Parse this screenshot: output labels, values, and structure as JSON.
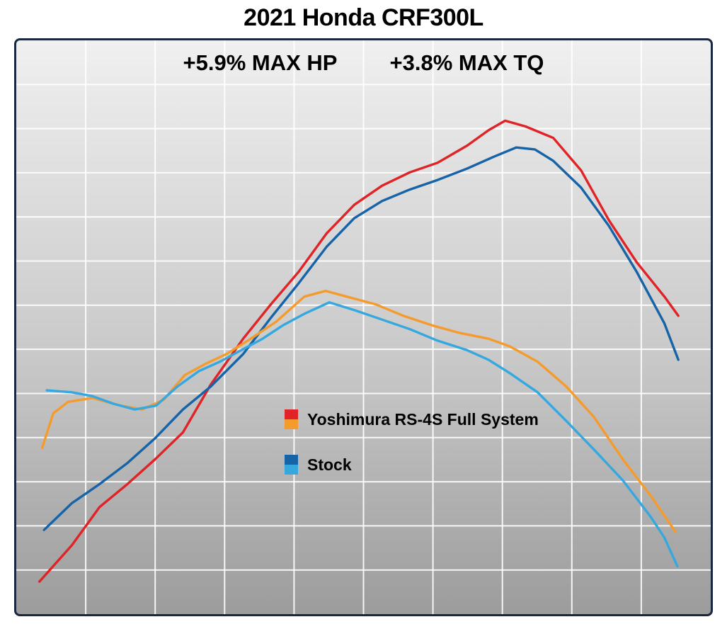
{
  "page": {
    "title": "2021 Honda CRF300L"
  },
  "annotations": {
    "hp_gain": "+5.9% MAX HP",
    "tq_gain": "+3.8% MAX TQ"
  },
  "legend": [
    {
      "label": "Yoshimura RS-4S Full System",
      "colors": [
        "#e02327",
        "#f59b2d"
      ]
    },
    {
      "label": "Stock",
      "colors": [
        "#1663a7",
        "#35a8e0"
      ]
    }
  ],
  "colors": {
    "border": "#1a2742",
    "grid": "#ffffff",
    "yoshimura_hp": "#e02327",
    "yoshimura_tq": "#f59b2d",
    "stock_hp": "#1663a7",
    "stock_tq": "#35a8e0"
  },
  "chart_data": {
    "type": "line",
    "title": "2021 Honda CRF300L",
    "subtitle_annotations": [
      "+5.9% MAX HP",
      "+3.8% MAX TQ"
    ],
    "xlabel": "",
    "ylabel": "",
    "axis_ticks_labeled": false,
    "xlim": [
      3000,
      10500
    ],
    "ylim": [
      0,
      30
    ],
    "x_units_estimated": "rpm",
    "grid": {
      "cols": 10,
      "rows": 13,
      "color": "#ffffff",
      "opacity": 0.9
    },
    "legend_position": "center",
    "series": [
      {
        "id": "yoshimura-hp",
        "name": "Yoshimura RS-4S Full System HP",
        "color": "#e02327",
        "max_value": 25.8,
        "points": [
          [
            3250,
            1.7
          ],
          [
            3600,
            3.6
          ],
          [
            3900,
            5.6
          ],
          [
            4200,
            6.8
          ],
          [
            4500,
            8.1
          ],
          [
            4800,
            9.5
          ],
          [
            5100,
            12.0
          ],
          [
            5450,
            14.4
          ],
          [
            5750,
            16.2
          ],
          [
            6050,
            17.9
          ],
          [
            6350,
            19.9
          ],
          [
            6650,
            21.4
          ],
          [
            6950,
            22.4
          ],
          [
            7250,
            23.1
          ],
          [
            7550,
            23.6
          ],
          [
            7870,
            24.5
          ],
          [
            8100,
            25.3
          ],
          [
            8280,
            25.8
          ],
          [
            8500,
            25.5
          ],
          [
            8800,
            24.9
          ],
          [
            9100,
            23.2
          ],
          [
            9400,
            20.6
          ],
          [
            9700,
            18.4
          ],
          [
            10000,
            16.6
          ],
          [
            10150,
            15.6
          ]
        ]
      },
      {
        "id": "stock-hp",
        "name": "Stock HP",
        "color": "#1663a7",
        "max_value": 24.4,
        "points": [
          [
            3300,
            4.4
          ],
          [
            3600,
            5.8
          ],
          [
            3900,
            6.8
          ],
          [
            4200,
            7.9
          ],
          [
            4500,
            9.2
          ],
          [
            4800,
            10.7
          ],
          [
            5100,
            11.9
          ],
          [
            5450,
            13.6
          ],
          [
            5750,
            15.5
          ],
          [
            6050,
            17.3
          ],
          [
            6350,
            19.2
          ],
          [
            6650,
            20.7
          ],
          [
            6950,
            21.6
          ],
          [
            7250,
            22.2
          ],
          [
            7550,
            22.7
          ],
          [
            7870,
            23.3
          ],
          [
            8150,
            23.9
          ],
          [
            8400,
            24.4
          ],
          [
            8600,
            24.3
          ],
          [
            8800,
            23.7
          ],
          [
            9100,
            22.3
          ],
          [
            9400,
            20.3
          ],
          [
            9700,
            17.9
          ],
          [
            10000,
            15.2
          ],
          [
            10150,
            13.3
          ]
        ]
      },
      {
        "id": "yoshimura-tq",
        "name": "Yoshimura RS-4S Full System TQ",
        "color": "#f59b2d",
        "max_value": 16.9,
        "points": [
          [
            3280,
            8.7
          ],
          [
            3400,
            10.5
          ],
          [
            3560,
            11.1
          ],
          [
            3820,
            11.3
          ],
          [
            4130,
            10.9
          ],
          [
            4360,
            10.7
          ],
          [
            4590,
            11.2
          ],
          [
            4820,
            12.5
          ],
          [
            5050,
            13.1
          ],
          [
            5270,
            13.6
          ],
          [
            5500,
            14.3
          ],
          [
            5810,
            15.3
          ],
          [
            6110,
            16.6
          ],
          [
            6340,
            16.9
          ],
          [
            6570,
            16.6
          ],
          [
            6880,
            16.2
          ],
          [
            7180,
            15.6
          ],
          [
            7490,
            15.1
          ],
          [
            7790,
            14.7
          ],
          [
            8100,
            14.4
          ],
          [
            8330,
            14.0
          ],
          [
            8630,
            13.2
          ],
          [
            8940,
            11.9
          ],
          [
            9240,
            10.3
          ],
          [
            9550,
            8.1
          ],
          [
            9850,
            6.2
          ],
          [
            10120,
            4.3
          ]
        ]
      },
      {
        "id": "stock-tq",
        "name": "Stock TQ",
        "color": "#35a8e0",
        "max_value": 16.3,
        "points": [
          [
            3330,
            11.7
          ],
          [
            3600,
            11.6
          ],
          [
            3820,
            11.4
          ],
          [
            4050,
            11.0
          ],
          [
            4280,
            10.7
          ],
          [
            4510,
            10.9
          ],
          [
            4740,
            11.9
          ],
          [
            4970,
            12.7
          ],
          [
            5200,
            13.2
          ],
          [
            5430,
            13.8
          ],
          [
            5660,
            14.4
          ],
          [
            5880,
            15.1
          ],
          [
            6110,
            15.7
          ],
          [
            6380,
            16.3
          ],
          [
            6650,
            15.9
          ],
          [
            6950,
            15.4
          ],
          [
            7250,
            14.9
          ],
          [
            7550,
            14.3
          ],
          [
            7870,
            13.8
          ],
          [
            8100,
            13.3
          ],
          [
            8330,
            12.6
          ],
          [
            8630,
            11.6
          ],
          [
            8940,
            10.1
          ],
          [
            9240,
            8.6
          ],
          [
            9550,
            7.0
          ],
          [
            9850,
            5.1
          ],
          [
            10000,
            4.0
          ],
          [
            10140,
            2.5
          ]
        ]
      }
    ]
  }
}
